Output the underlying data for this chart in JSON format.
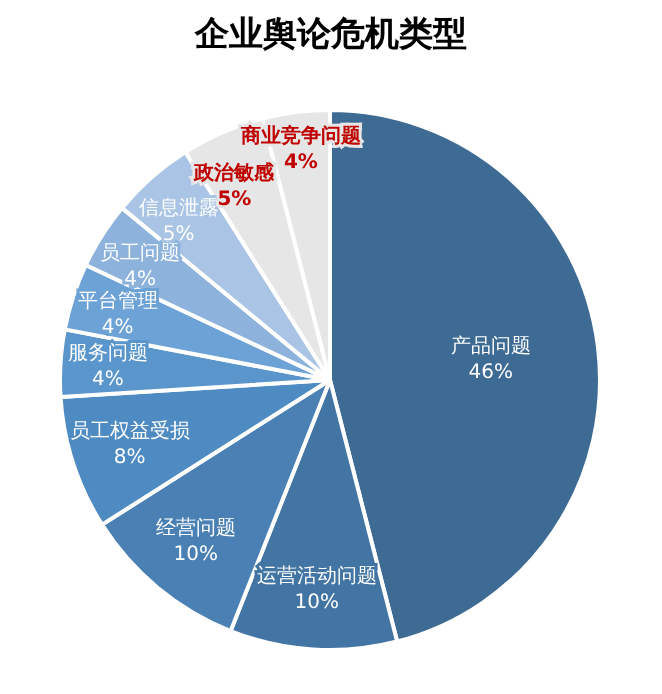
{
  "chart_data": {
    "type": "pie",
    "title": "企业舆论危机类型",
    "categories": [
      "产品问题",
      "运营活动问题",
      "经营问题",
      "员工权益受损",
      "服务问题",
      "平台管理",
      "员工问题",
      "信息泄露",
      "政治敏感",
      "商业竞争问题"
    ],
    "values": [
      46,
      10,
      10,
      8,
      4,
      4,
      4,
      5,
      5,
      4
    ],
    "value_labels": [
      "46%",
      "10%",
      "10%",
      "8%",
      "4%",
      "4%",
      "4%",
      "5%",
      "5%",
      "4%"
    ],
    "colors": [
      "#3d6b94",
      "#4275a3",
      "#4a80b4",
      "#4e8bc2",
      "#5a96cc",
      "#6da2d6",
      "#8db3dc",
      "#a9c4e4",
      "#e6e6e6",
      "#e6e6e6"
    ],
    "legend": false
  }
}
